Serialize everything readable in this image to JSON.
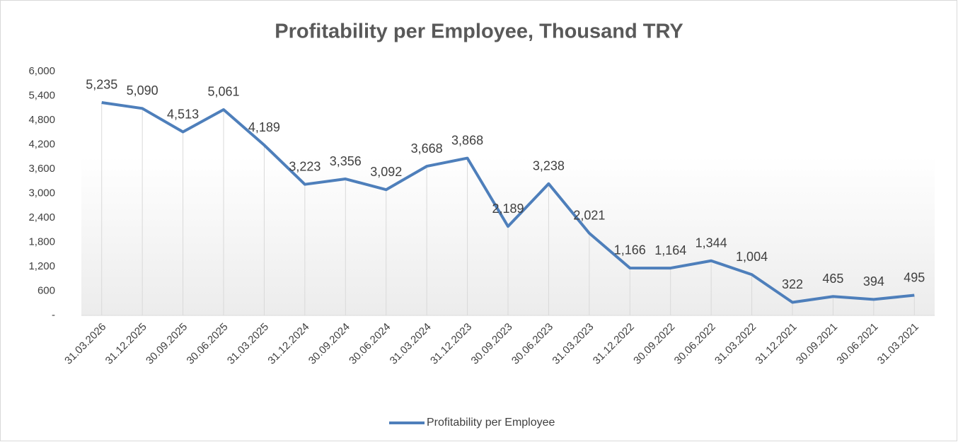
{
  "chart_data": {
    "type": "line",
    "title": "Profitability per Employee, Thousand TRY",
    "categories": [
      "31.03.2026",
      "31.12.2025",
      "30.09.2025",
      "30.06.2025",
      "31.03.2025",
      "31.12.2024",
      "30.09.2024",
      "30.06.2024",
      "31.03.2024",
      "31.12.2023",
      "30.09.2023",
      "30.06.2023",
      "31.03.2023",
      "31.12.2022",
      "30.09.2022",
      "30.06.2022",
      "31.03.2022",
      "31.12.2021",
      "30.09.2021",
      "30.06.2021",
      "31.03.2021"
    ],
    "series": [
      {
        "name": "Profitability per Employee",
        "color": "#4e7fbb",
        "values": [
          5235,
          5090,
          4513,
          5061,
          4189,
          3223,
          3356,
          3092,
          3668,
          3868,
          2189,
          3238,
          2021,
          1166,
          1164,
          1344,
          1004,
          322,
          465,
          394,
          495
        ],
        "value_labels": [
          "5,235",
          "5,090",
          "4,513",
          "5,061",
          "4,189",
          "3,223",
          "3,356",
          "3,092",
          "3,668",
          "3,868",
          "2,189",
          "3,238",
          "2,021",
          "1,166",
          "1,164",
          "1,344",
          "1,004",
          "322",
          "465",
          "394",
          "495"
        ]
      }
    ],
    "ylim": [
      0,
      6000
    ],
    "yticks": [
      {
        "value": 0,
        "label": "-"
      },
      600,
      {
        "value": 1200,
        "label": "1,200"
      },
      {
        "value": 1800,
        "label": "1,800"
      },
      {
        "value": 2400,
        "label": "2,400"
      },
      {
        "value": 3000,
        "label": "3,000"
      },
      {
        "value": 3600,
        "label": "3,600"
      },
      {
        "value": 4200,
        "label": "4,200"
      },
      {
        "value": 4800,
        "label": "4,800"
      },
      {
        "value": 5400,
        "label": "5,400"
      },
      {
        "value": 6000,
        "label": "6,000"
      }
    ],
    "drop_lines": true,
    "legend": "bottom"
  }
}
